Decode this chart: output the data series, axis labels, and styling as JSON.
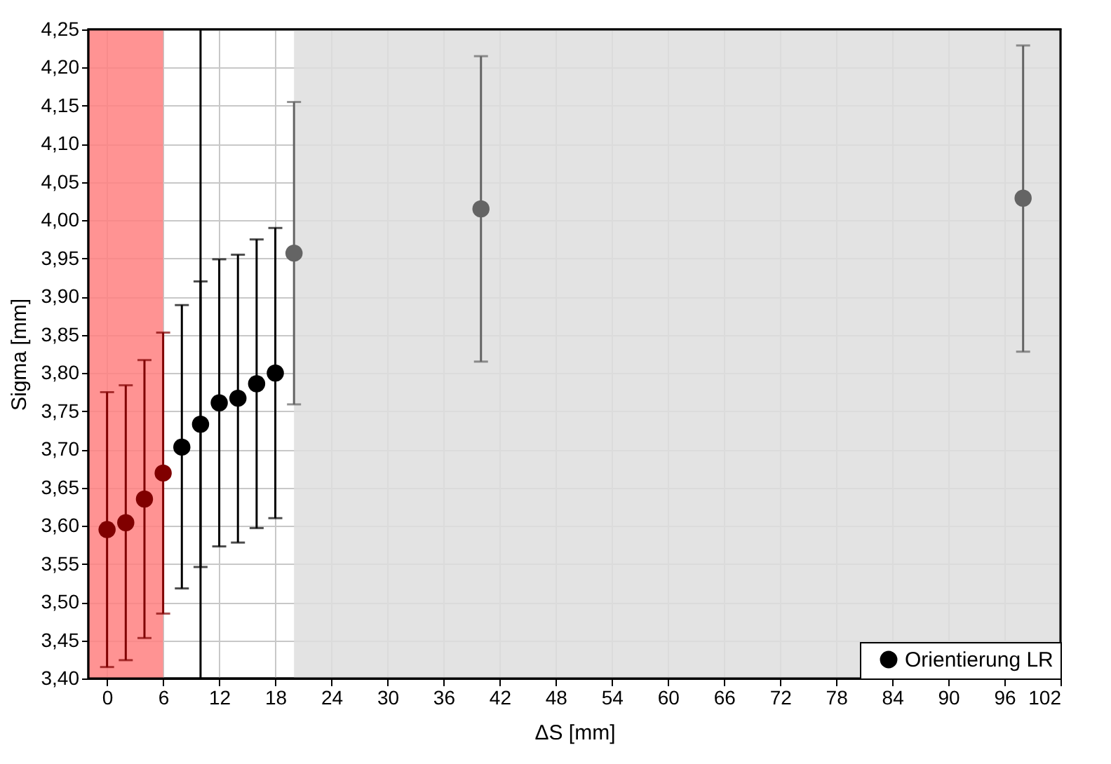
{
  "chart_data": {
    "type": "scatter",
    "xlabel": "ΔS [mm]",
    "ylabel": "Sigma [mm]",
    "x": [
      0,
      2,
      4,
      6,
      8,
      10,
      12,
      14,
      16,
      18,
      20,
      40,
      98
    ],
    "series": [
      {
        "name": "Orientierung LR",
        "color": "#000000",
        "values": [
          3.595,
          3.604,
          3.635,
          3.669,
          3.703,
          3.733,
          3.761,
          3.767,
          3.786,
          3.8,
          3.957,
          4.015,
          4.029
        ],
        "errors": [
          [
            3.415,
            3.775
          ],
          [
            3.424,
            3.784
          ],
          [
            3.453,
            3.817
          ],
          [
            3.485,
            3.853
          ],
          [
            3.518,
            3.889
          ],
          [
            3.546,
            3.92
          ],
          [
            3.573,
            3.949
          ],
          [
            3.578,
            3.955
          ],
          [
            3.597,
            3.975
          ],
          [
            3.61,
            3.99
          ],
          [
            3.759,
            4.155
          ],
          [
            3.815,
            4.215
          ],
          [
            3.828,
            4.229
          ]
        ],
        "colors": [
          "#800000",
          "#800000",
          "#800000",
          "#800000",
          "#000000",
          "#000000",
          "#000000",
          "#000000",
          "#000000",
          "#000000",
          "#646464",
          "#646464",
          "#646464"
        ]
      }
    ],
    "xlim": [
      -2,
      102
    ],
    "xticks": [
      0,
      6,
      12,
      18,
      24,
      30,
      36,
      42,
      48,
      54,
      60,
      66,
      72,
      78,
      84,
      90,
      96,
      102
    ],
    "ylim": [
      3.4,
      4.25
    ],
    "yticks": [
      {
        "value": 3.4,
        "label": "3,40"
      },
      {
        "value": 3.45,
        "label": "3,45"
      },
      {
        "value": 3.5,
        "label": "3,50"
      },
      {
        "value": 3.55,
        "label": "3,55"
      },
      {
        "value": 3.6,
        "label": "3,60"
      },
      {
        "value": 3.65,
        "label": "3,65"
      },
      {
        "value": 3.7,
        "label": "3,70"
      },
      {
        "value": 3.75,
        "label": "3,75"
      },
      {
        "value": 3.8,
        "label": "3,80"
      },
      {
        "value": 3.85,
        "label": "3,85"
      },
      {
        "value": 3.9,
        "label": "3,90"
      },
      {
        "value": 3.95,
        "label": "3,95"
      },
      {
        "value": 4.0,
        "label": "4,00"
      },
      {
        "value": 4.05,
        "label": "4,05"
      },
      {
        "value": 4.1,
        "label": "4,10"
      },
      {
        "value": 4.15,
        "label": "4,15"
      },
      {
        "value": 4.2,
        "label": "4,20"
      },
      {
        "value": 4.25,
        "label": "4,25"
      }
    ],
    "bands": [
      {
        "axis": "x",
        "from": -2,
        "to": 6,
        "color": "#ff8080"
      },
      {
        "axis": "x",
        "from": 20,
        "to": 102,
        "color": "#dedede"
      }
    ],
    "ref_lines": [
      {
        "axis": "x",
        "value": 10,
        "color": "#000000"
      }
    ],
    "grid": true,
    "legend": "bottom right",
    "marker": "circle"
  }
}
